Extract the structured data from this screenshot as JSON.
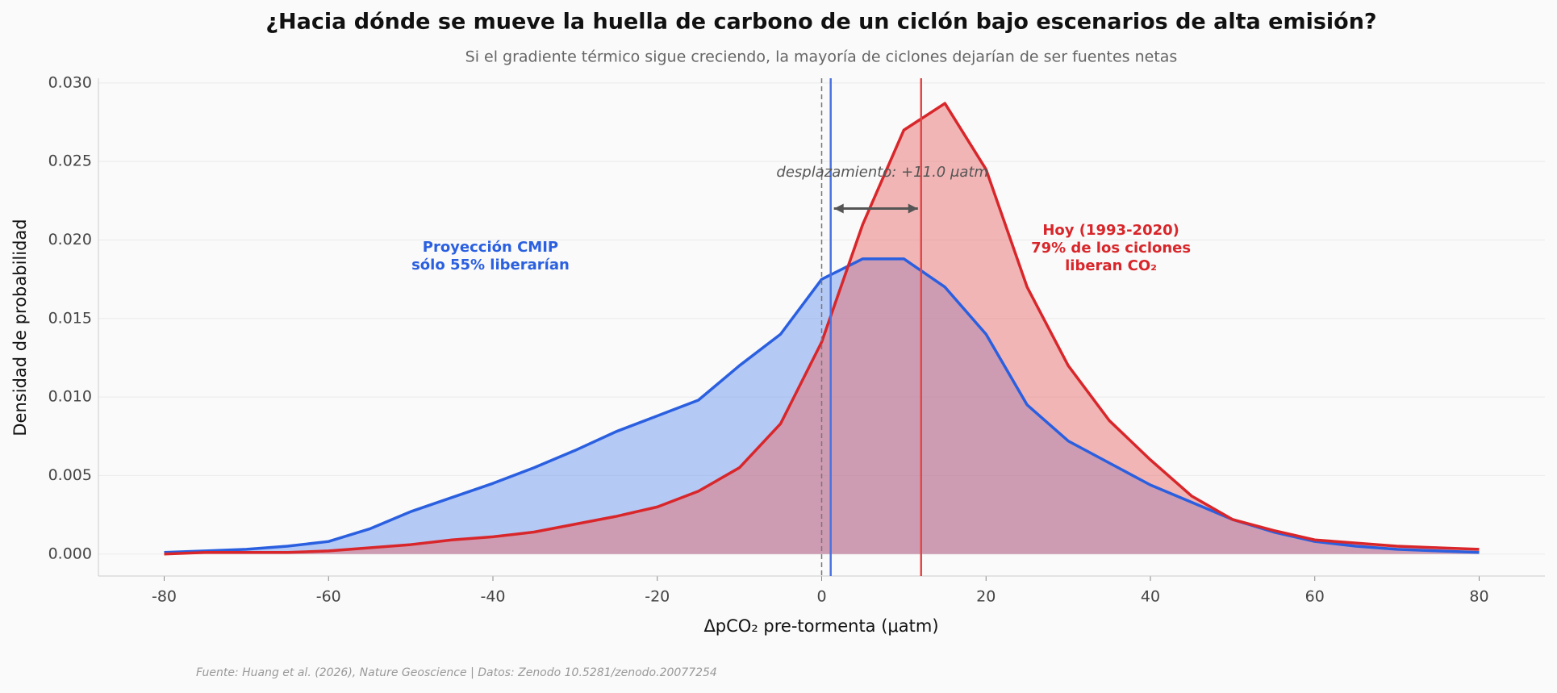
{
  "chart_data": {
    "type": "area",
    "title": "¿Hacia dónde se mueve la huella de carbono de un ciclón bajo escenarios de alta emisión?",
    "subtitle": "Si el gradiente térmico sigue creciendo, la mayoría de ciclones dejarían de ser fuentes netas",
    "x_label": "ΔpCO₂ pre-tormenta (μatm)",
    "y_label": "Densidad de probabilidad",
    "source": "Fuente: Huang et al. (2026), Nature Geoscience | Datos: Zenodo 10.5281/zenodo.20077254",
    "x": [
      -80,
      -75,
      -70,
      -65,
      -60,
      -55,
      -50,
      -45,
      -40,
      -35,
      -30,
      -25,
      -20,
      -15,
      -10,
      -5,
      0,
      5,
      10,
      15,
      20,
      25,
      30,
      35,
      40,
      45,
      50,
      55,
      60,
      65,
      70,
      75,
      80
    ],
    "series": [
      {
        "name": "Proyección CMIP",
        "color": "#2a5fe0",
        "fill": "#6f98f0",
        "values": [
          0.0001,
          0.0002,
          0.0003,
          0.0005,
          0.0008,
          0.0016,
          0.0027,
          0.0036,
          0.0045,
          0.0055,
          0.0066,
          0.0078,
          0.0088,
          0.0098,
          0.012,
          0.014,
          0.0175,
          0.0188,
          0.0188,
          0.017,
          0.014,
          0.0095,
          0.0072,
          0.0058,
          0.0044,
          0.0033,
          0.0022,
          0.0014,
          0.0008,
          0.0005,
          0.0003,
          0.0002,
          0.0001
        ]
      },
      {
        "name": "Hoy (1993-2020)",
        "color": "#d8262a",
        "fill": "#e87070",
        "values": [
          0.0,
          0.0001,
          0.0001,
          0.0001,
          0.0002,
          0.0004,
          0.0006,
          0.0009,
          0.0011,
          0.0014,
          0.0019,
          0.0024,
          0.003,
          0.004,
          0.0055,
          0.0083,
          0.0135,
          0.021,
          0.027,
          0.0287,
          0.0245,
          0.017,
          0.012,
          0.0085,
          0.006,
          0.0037,
          0.0022,
          0.0015,
          0.0009,
          0.0007,
          0.0005,
          0.0004,
          0.0003
        ]
      }
    ],
    "reference_lines": [
      {
        "x": 0,
        "color": "#777777",
        "dashed": true
      },
      {
        "x": 1.1,
        "color": "#4a72e0",
        "dashed": false
      },
      {
        "x": 12.1,
        "color": "#e04848",
        "dashed": false
      }
    ],
    "annotations": {
      "shift": "desplazamiento: +11.0 μatm",
      "cmip": [
        "Proyección CMIP",
        "sólo 55% liberarían"
      ],
      "today": [
        "Hoy (1993-2020)",
        "79% de los ciclones",
        "liberan CO₂"
      ]
    },
    "xlim": [
      -88,
      88
    ],
    "ylim": [
      -0.0014,
      0.0303
    ],
    "xticks": [
      -80,
      -60,
      -40,
      -20,
      0,
      20,
      40,
      60,
      80
    ],
    "yticks": [
      {
        "value": 0,
        "label": "0.000"
      },
      {
        "value": 0.005,
        "label": "0.005"
      },
      {
        "value": 0.01,
        "label": "0.010"
      },
      {
        "value": 0.015,
        "label": "0.015"
      },
      {
        "value": 0.02,
        "label": "0.020"
      },
      {
        "value": 0.025,
        "label": "0.025"
      },
      {
        "value": 0.03,
        "label": "0.030"
      }
    ],
    "grid": true
  }
}
